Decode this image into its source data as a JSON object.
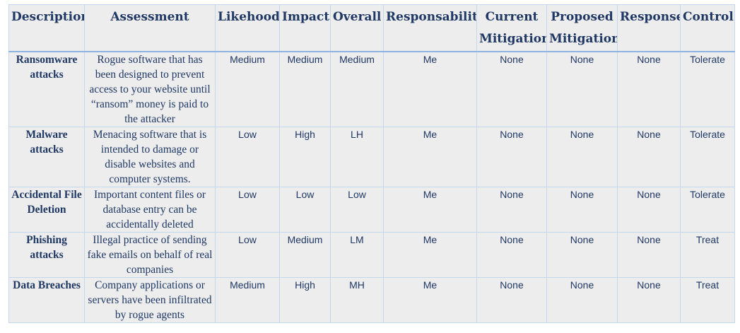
{
  "table": {
    "headers": {
      "description": "Description",
      "assessment": "Assessment",
      "likelihood": "Likehood",
      "impact": "Impact",
      "overall": "Overall",
      "responsibility": "Responsability",
      "current_mitigation": "Current Mitigation",
      "proposed_mitigation": "Proposed Mitigation",
      "response": "Response",
      "control": "Control"
    },
    "rows": [
      {
        "description": "Ransomware attacks",
        "assessment": "Rogue software that has been designed to prevent access to your website until “ransom” money is paid to the attacker",
        "likelihood": "Medium",
        "impact": "Medium",
        "overall": "Medium",
        "responsibility": "Me",
        "current_mitigation": "None",
        "proposed_mitigation": "None",
        "response": "None",
        "control": "Tolerate"
      },
      {
        "description": "Malware attacks",
        "assessment": "Menacing software that is intended to damage or disable websites and computer systems.",
        "likelihood": "Low",
        "impact": "High",
        "overall": "LH",
        "responsibility": "Me",
        "current_mitigation": "None",
        "proposed_mitigation": "None",
        "response": "None",
        "control": "Tolerate"
      },
      {
        "description": "Accidental File Deletion",
        "assessment": "Important content files or database entry can be accidentally deleted",
        "likelihood": "Low",
        "impact": "Low",
        "overall": "Low",
        "responsibility": "Me",
        "current_mitigation": "None",
        "proposed_mitigation": "None",
        "response": "None",
        "control": "Tolerate"
      },
      {
        "description": "Phishing attacks",
        "assessment": "Illegal practice of sending fake emails on behalf of real companies",
        "likelihood": "Low",
        "impact": "Medium",
        "overall": "LM",
        "responsibility": "Me",
        "current_mitigation": "None",
        "proposed_mitigation": "None",
        "response": "None",
        "control": "Treat"
      },
      {
        "description": "Data Breaches",
        "assessment": "Company applications or servers have been infiltrated by rogue agents",
        "likelihood": "Medium",
        "impact": "High",
        "overall": "MH",
        "responsibility": "Me",
        "current_mitigation": "None",
        "proposed_mitigation": "None",
        "response": "None",
        "control": "Treat"
      }
    ]
  }
}
